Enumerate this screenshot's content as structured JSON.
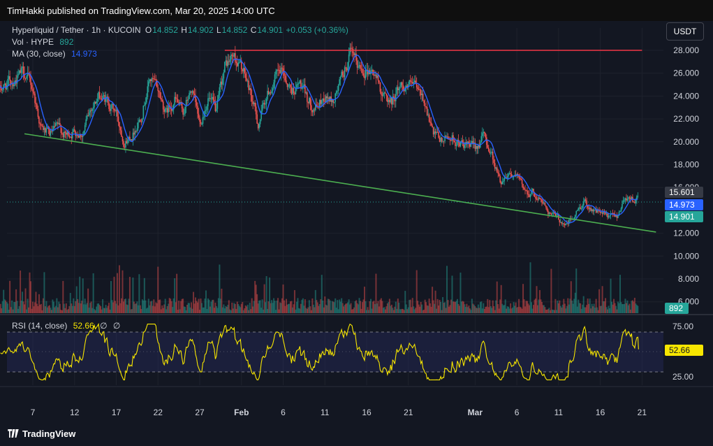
{
  "publish_text": "TimHakki published on TradingView.com, Mar 20, 2025 14:00 UTC",
  "symbol": "Hyperliquid / Tether · 1h · KUCOIN",
  "ohlc": {
    "o_label": "O",
    "o": "14.852",
    "h_label": "H",
    "h": "14.902",
    "l_label": "L",
    "l": "14.852",
    "c_label": "C",
    "c": "14.901",
    "change": "+0.053 (+0.36%)"
  },
  "vol_legend": {
    "label": "Vol · HYPE",
    "value": "892"
  },
  "ma_legend": {
    "label": "MA (30, close)",
    "value": "14.973"
  },
  "rsi_legend": {
    "label": "RSI (14, close)",
    "value": "52.66",
    "extra1": "∅",
    "extra2": "∅"
  },
  "currency_button": "USDT",
  "footer_brand": "TradingView",
  "tags": {
    "high_marker": "15.601",
    "ma_value": "14.973",
    "last_price": "14.901",
    "volume": "892",
    "rsi": "52.66"
  },
  "colors": {
    "up": "#26a69a",
    "down": "#ef5350",
    "ma": "#2962ff",
    "resistance": "#f23645",
    "support": "#4caf50",
    "rsi": "#f7e600",
    "background": "#131722"
  },
  "chart_data": [
    {
      "type": "candlestick",
      "title": "Hyperliquid / Tether · 1h · KUCOIN",
      "x_ticks": [
        "7",
        "12",
        "17",
        "22",
        "27",
        "Feb",
        "6",
        "11",
        "16",
        "21",
        "Mar",
        "6",
        "11",
        "16",
        "21"
      ],
      "y_ticks": [
        "28.000",
        "26.000",
        "24.000",
        "22.000",
        "20.000",
        "18.000",
        "16.000",
        "12.000",
        "10.000",
        "8.000",
        "6.000"
      ],
      "ylim": [
        5.8,
        28.7
      ],
      "x_range": [
        "Jan 3, 2025",
        "Mar 20, 2025"
      ],
      "close_path": [
        {
          "x": "Jan 3",
          "y": 24.5
        },
        {
          "x": "Jan 5",
          "y": 25.6
        },
        {
          "x": "Jan 6",
          "y": 26.0
        },
        {
          "x": "Jan 7",
          "y": 24.6
        },
        {
          "x": "Jan 8",
          "y": 21.2
        },
        {
          "x": "Jan 9",
          "y": 20.5
        },
        {
          "x": "Jan 10",
          "y": 21.2
        },
        {
          "x": "Jan 11",
          "y": 20.5
        },
        {
          "x": "Jan 12",
          "y": 21.0
        },
        {
          "x": "Jan 13",
          "y": 20.8
        },
        {
          "x": "Jan 14",
          "y": 23.0
        },
        {
          "x": "Jan 15",
          "y": 24.0
        },
        {
          "x": "Jan 16",
          "y": 23.5
        },
        {
          "x": "Jan 17",
          "y": 22.5
        },
        {
          "x": "Jan 18",
          "y": 20.0
        },
        {
          "x": "Jan 19",
          "y": 20.8
        },
        {
          "x": "Jan 20",
          "y": 22.5
        },
        {
          "x": "Jan 21",
          "y": 25.5
        },
        {
          "x": "Jan 22",
          "y": 24.5
        },
        {
          "x": "Jan 23",
          "y": 22.5
        },
        {
          "x": "Jan 24",
          "y": 23.8
        },
        {
          "x": "Jan 25",
          "y": 22.5
        },
        {
          "x": "Jan 26",
          "y": 24.5
        },
        {
          "x": "Jan 27",
          "y": 21.5
        },
        {
          "x": "Jan 28",
          "y": 24.0
        },
        {
          "x": "Jan 29",
          "y": 22.5
        },
        {
          "x": "Jan 30",
          "y": 26.5
        },
        {
          "x": "Jan 31",
          "y": 27.5
        },
        {
          "x": "Feb 1",
          "y": 26.5
        },
        {
          "x": "Feb 2",
          "y": 24.5
        },
        {
          "x": "Feb 3",
          "y": 21.5
        },
        {
          "x": "Feb 4",
          "y": 24.0
        },
        {
          "x": "Feb 5",
          "y": 25.5
        },
        {
          "x": "Feb 6",
          "y": 26.0
        },
        {
          "x": "Feb 7",
          "y": 24.5
        },
        {
          "x": "Feb 8",
          "y": 25.0
        },
        {
          "x": "Feb 9",
          "y": 23.5
        },
        {
          "x": "Feb 10",
          "y": 23.0
        },
        {
          "x": "Feb 11",
          "y": 24.0
        },
        {
          "x": "Feb 12",
          "y": 23.5
        },
        {
          "x": "Feb 13",
          "y": 25.5
        },
        {
          "x": "Feb 14",
          "y": 27.5
        },
        {
          "x": "Feb 15",
          "y": 26.5
        },
        {
          "x": "Feb 16",
          "y": 26.5
        },
        {
          "x": "Feb 17",
          "y": 26.0
        },
        {
          "x": "Feb 18",
          "y": 24.0
        },
        {
          "x": "Feb 19",
          "y": 23.5
        },
        {
          "x": "Feb 20",
          "y": 25.0
        },
        {
          "x": "Feb 21",
          "y": 25.0
        },
        {
          "x": "Feb 22",
          "y": 24.5
        },
        {
          "x": "Feb 23",
          "y": 23.5
        },
        {
          "x": "Feb 24",
          "y": 20.5
        },
        {
          "x": "Feb 25",
          "y": 20.0
        },
        {
          "x": "Feb 26",
          "y": 20.5
        },
        {
          "x": "Feb 27",
          "y": 20.0
        },
        {
          "x": "Feb 28",
          "y": 19.5
        },
        {
          "x": "Mar 1",
          "y": 19.5
        },
        {
          "x": "Mar 2",
          "y": 20.5
        },
        {
          "x": "Mar 3",
          "y": 19.0
        },
        {
          "x": "Mar 4",
          "y": 16.5
        },
        {
          "x": "Mar 5",
          "y": 17.5
        },
        {
          "x": "Mar 6",
          "y": 16.8
        },
        {
          "x": "Mar 7",
          "y": 15.8
        },
        {
          "x": "Mar 8",
          "y": 15.5
        },
        {
          "x": "Mar 9",
          "y": 14.8
        },
        {
          "x": "Mar 10",
          "y": 13.8
        },
        {
          "x": "Mar 11",
          "y": 13.2
        },
        {
          "x": "Mar 12",
          "y": 12.8
        },
        {
          "x": "Mar 13",
          "y": 13.5
        },
        {
          "x": "Mar 14",
          "y": 14.8
        },
        {
          "x": "Mar 15",
          "y": 14.2
        },
        {
          "x": "Mar 16",
          "y": 13.8
        },
        {
          "x": "Mar 17",
          "y": 13.3
        },
        {
          "x": "Mar 18",
          "y": 13.5
        },
        {
          "x": "Mar 19",
          "y": 15.3
        },
        {
          "x": "Mar 20",
          "y": 14.9
        }
      ],
      "resistance_line": {
        "from": {
          "x": "Jan 30",
          "y": 28.0
        },
        "to": {
          "x": "Mar 21",
          "y": 28.0
        }
      },
      "support_line": {
        "from": {
          "x": "Jan 6",
          "y": 20.7
        },
        "to": {
          "x": "Mar 21",
          "y": 12.1
        }
      }
    },
    {
      "type": "bar",
      "title": "Vol · HYPE",
      "last_value": 892
    },
    {
      "type": "line",
      "title": "RSI (14, close)",
      "y_ticks": [
        "75.00",
        "25.00"
      ],
      "ylim": [
        15,
        85
      ],
      "bands": [
        30,
        50,
        70
      ],
      "last_value": 52.66
    }
  ]
}
